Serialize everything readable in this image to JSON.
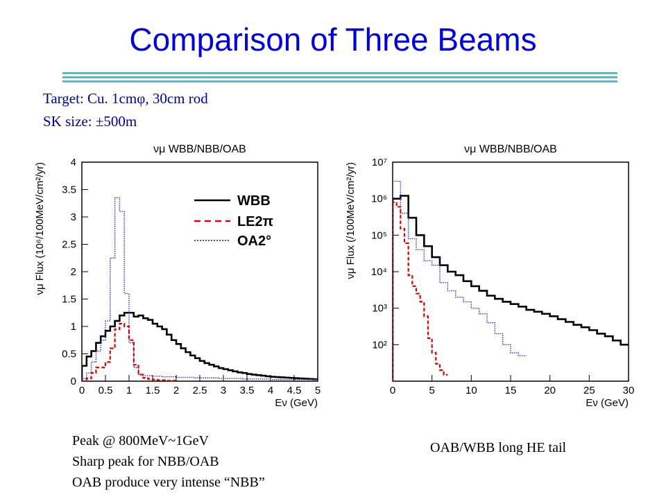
{
  "slide": {
    "title": "Comparison of Three Beams",
    "target_line": "Target: Cu. 1cmφ, 30cm rod",
    "sk_line": "SK size: ±500m",
    "left_notes": [
      "Peak @ 800MeV~1GeV",
      "Sharp peak for NBB/OAB",
      "OAB produce very intense “NBB”"
    ],
    "right_note": "OAB/WBB long HE tail"
  },
  "colors": {
    "title": "#0000dd",
    "info": "#000099",
    "wbb": "#000000",
    "le2pi": "#e00000",
    "oa2": "#2a2ad8",
    "rule": "#5fb8c8"
  },
  "legend_labels": [
    "WBB",
    "LE2π",
    "OA2°"
  ],
  "chart_data": [
    {
      "type": "line",
      "step": true,
      "title": "νμ WBB/NBB/OAB",
      "xlabel": "Eν (GeV)",
      "ylabel": "νμ Flux (10⁶/100MeV/cm²/yr)",
      "xlim": [
        0,
        5
      ],
      "ylim": [
        0,
        4
      ],
      "yscale": "linear",
      "xticks": [
        "0",
        "0.5",
        "1",
        "1.5",
        "2",
        "2.5",
        "3",
        "3.5",
        "4",
        "4.5",
        "5"
      ],
      "yticks": [
        "0",
        "0.5",
        "1",
        "1.5",
        "2",
        "2.5",
        "3",
        "3.5",
        "4"
      ],
      "legend": "top-right",
      "series": [
        {
          "name": "WBB",
          "bin_width": 0.1,
          "values": [
            0.28,
            0.45,
            0.55,
            0.7,
            0.82,
            0.92,
            1.0,
            1.1,
            1.2,
            1.25,
            1.25,
            1.18,
            1.2,
            1.15,
            1.12,
            1.05,
            1.0,
            0.95,
            0.85,
            0.75,
            0.68,
            0.6,
            0.53,
            0.47,
            0.42,
            0.37,
            0.33,
            0.3,
            0.27,
            0.24,
            0.22,
            0.2,
            0.18,
            0.16,
            0.15,
            0.13,
            0.12,
            0.11,
            0.1,
            0.09,
            0.08,
            0.075,
            0.07,
            0.065,
            0.06,
            0.055,
            0.05,
            0.045,
            0.04,
            0.035
          ]
        },
        {
          "name": "LE2π",
          "bin_width": 0.1,
          "values": [
            0.0,
            0.05,
            0.15,
            0.25,
            0.25,
            0.35,
            0.6,
            0.95,
            1.05,
            1.0,
            0.75,
            0.3,
            0.12,
            0.06,
            0.04,
            0.03,
            0.02,
            0.02,
            0.01,
            0.01
          ]
        },
        {
          "name": "OA2°",
          "bin_width": 0.1,
          "values": [
            0.05,
            0.15,
            0.35,
            0.55,
            0.75,
            1.1,
            2.25,
            3.35,
            3.1,
            1.6,
            0.7,
            0.25,
            0.12,
            0.1,
            0.1,
            0.09,
            0.09,
            0.08,
            0.08,
            0.08,
            0.07,
            0.07,
            0.07,
            0.07,
            0.06,
            0.06,
            0.06,
            0.06,
            0.06,
            0.05,
            0.05,
            0.05,
            0.05,
            0.05,
            0.04,
            0.04,
            0.04,
            0.04,
            0.04,
            0.04,
            0.03,
            0.03,
            0.03,
            0.03,
            0.03,
            0.03,
            0.03,
            0.03,
            0.03,
            0.03
          ]
        }
      ]
    },
    {
      "type": "line",
      "step": true,
      "title": "νμ WBB/NBB/OAB",
      "xlabel": "Eν (GeV)",
      "ylabel": "νμ Flux (/100MeV/cm²/yr)",
      "xlim": [
        0,
        30
      ],
      "ylim": [
        10,
        10000000
      ],
      "yscale": "log",
      "xticks": [
        "0",
        "5",
        "10",
        "15",
        "20",
        "25",
        "30"
      ],
      "yticks": [
        "10²",
        "10³",
        "10⁴",
        "10⁵",
        "10⁶",
        "10⁷"
      ],
      "series": [
        {
          "name": "WBB",
          "bin_width": 1,
          "values": [
            1000000,
            1200000,
            300000,
            100000,
            50000,
            25000,
            15000,
            10000,
            8000,
            5500,
            4000,
            3000,
            2200,
            1800,
            1500,
            1300,
            1100,
            900,
            800,
            700,
            600,
            500,
            420,
            350,
            300,
            250,
            200,
            170,
            130,
            100
          ]
        },
        {
          "name": "LE2π",
          "bin_width": 0.5,
          "values": [
            800000,
            600000,
            150000,
            60000,
            8000,
            4000,
            2500,
            1500,
            600,
            150,
            60,
            30,
            20,
            15
          ]
        },
        {
          "name": "OA2°",
          "bin_width": 1,
          "values": [
            3000000,
            400000,
            80000,
            40000,
            20000,
            15000,
            5000,
            3000,
            2000,
            1500,
            1000,
            700,
            400,
            200,
            100,
            60,
            50
          ]
        }
      ]
    }
  ]
}
